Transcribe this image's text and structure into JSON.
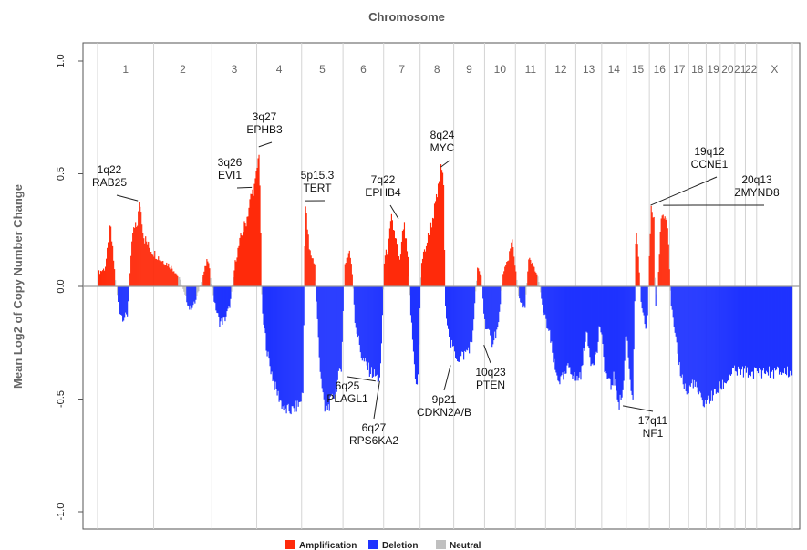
{
  "chart_data": {
    "type": "bar",
    "title": "Chromosome",
    "ylabel": "Mean Log2 of Copy Number Change",
    "ylim": [
      -1.05,
      1.0
    ],
    "yticks": [
      "1.0",
      "0.5",
      "0.0",
      "-0.5",
      "-1.0"
    ],
    "ytick_values": [
      1.0,
      0.5,
      0.0,
      -0.5,
      -1.0
    ],
    "colors": {
      "amplification": "#ff2a0a",
      "deletion": "#1f33ff",
      "neutral": "#c0c0c0",
      "zero_line": "#9a9a9a",
      "grid": "#d4d4d4"
    },
    "chromosomes": [
      {
        "label": "1",
        "length": 0.08
      },
      {
        "label": "2",
        "length": 0.083
      },
      {
        "label": "3",
        "length": 0.064
      },
      {
        "label": "4",
        "length": 0.064
      },
      {
        "label": "5",
        "length": 0.059
      },
      {
        "label": "6",
        "length": 0.058
      },
      {
        "label": "7",
        "length": 0.052
      },
      {
        "label": "8",
        "length": 0.048
      },
      {
        "label": "9",
        "length": 0.044
      },
      {
        "label": "10",
        "length": 0.044
      },
      {
        "label": "11",
        "length": 0.043
      },
      {
        "label": "12",
        "length": 0.043
      },
      {
        "label": "13",
        "length": 0.037
      },
      {
        "label": "14",
        "length": 0.035
      },
      {
        "label": "15",
        "length": 0.033
      },
      {
        "label": "16",
        "length": 0.029
      },
      {
        "label": "17",
        "length": 0.027
      },
      {
        "label": "18",
        "length": 0.025
      },
      {
        "label": "19",
        "length": 0.02
      },
      {
        "label": "20",
        "length": 0.021
      },
      {
        "label": "21",
        "length": 0.015
      },
      {
        "label": "22",
        "length": 0.016
      },
      {
        "label": "X",
        "length": 0.051
      }
    ],
    "profile_points": [
      [
        0.0,
        0.06
      ],
      [
        0.01,
        0.08
      ],
      [
        0.018,
        0.26
      ],
      [
        0.025,
        0.03
      ],
      [
        0.03,
        -0.1
      ],
      [
        0.036,
        -0.14
      ],
      [
        0.042,
        -0.13
      ],
      [
        0.05,
        0.24
      ],
      [
        0.056,
        0.27
      ],
      [
        0.06,
        0.38
      ],
      [
        0.066,
        0.22
      ],
      [
        0.074,
        0.17
      ],
      [
        0.08,
        0.15
      ],
      [
        0.09,
        0.12
      ],
      [
        0.1,
        0.1
      ],
      [
        0.11,
        0.07
      ],
      [
        0.118,
        0.03
      ],
      [
        0.125,
        -0.04
      ],
      [
        0.132,
        -0.1
      ],
      [
        0.14,
        -0.07
      ],
      [
        0.15,
        0.04
      ],
      [
        0.158,
        0.12
      ],
      [
        0.163,
        0.02
      ],
      [
        0.168,
        -0.08
      ],
      [
        0.175,
        -0.16
      ],
      [
        0.182,
        -0.15
      ],
      [
        0.19,
        -0.08
      ],
      [
        0.198,
        0.12
      ],
      [
        0.206,
        0.22
      ],
      [
        0.214,
        0.3
      ],
      [
        0.22,
        0.4
      ],
      [
        0.226,
        0.45
      ],
      [
        0.231,
        0.58
      ],
      [
        0.232,
        0.62
      ],
      [
        0.236,
        -0.12
      ],
      [
        0.245,
        -0.32
      ],
      [
        0.255,
        -0.45
      ],
      [
        0.268,
        -0.55
      ],
      [
        0.28,
        -0.55
      ],
      [
        0.29,
        -0.52
      ],
      [
        0.295,
        -0.47
      ],
      [
        0.298,
        0.38
      ],
      [
        0.304,
        0.16
      ],
      [
        0.312,
        0.1
      ],
      [
        0.318,
        -0.3
      ],
      [
        0.326,
        -0.56
      ],
      [
        0.334,
        -0.52
      ],
      [
        0.342,
        -0.46
      ],
      [
        0.35,
        -0.35
      ],
      [
        0.355,
        0.1
      ],
      [
        0.362,
        0.16
      ],
      [
        0.366,
        0.05
      ],
      [
        0.37,
        -0.16
      ],
      [
        0.38,
        -0.32
      ],
      [
        0.39,
        -0.37
      ],
      [
        0.4,
        -0.4
      ],
      [
        0.406,
        -0.42
      ],
      [
        0.412,
        0.12
      ],
      [
        0.418,
        0.18
      ],
      [
        0.422,
        0.3
      ],
      [
        0.428,
        0.22
      ],
      [
        0.434,
        0.1
      ],
      [
        0.44,
        0.28
      ],
      [
        0.446,
        0.12
      ],
      [
        0.45,
        -0.12
      ],
      [
        0.456,
        -0.38
      ],
      [
        0.46,
        -0.46
      ],
      [
        0.465,
        0.1
      ],
      [
        0.472,
        0.18
      ],
      [
        0.48,
        0.28
      ],
      [
        0.488,
        0.4
      ],
      [
        0.494,
        0.53
      ],
      [
        0.497,
        0.5
      ],
      [
        0.5,
        -0.1
      ],
      [
        0.508,
        -0.26
      ],
      [
        0.518,
        -0.32
      ],
      [
        0.528,
        -0.3
      ],
      [
        0.538,
        -0.25
      ],
      [
        0.546,
        0.08
      ],
      [
        0.552,
        0.04
      ],
      [
        0.556,
        -0.15
      ],
      [
        0.566,
        -0.25
      ],
      [
        0.576,
        -0.18
      ],
      [
        0.582,
        0.04
      ],
      [
        0.59,
        0.12
      ],
      [
        0.596,
        0.2
      ],
      [
        0.6,
        0.1
      ],
      [
        0.606,
        -0.06
      ],
      [
        0.614,
        -0.1
      ],
      [
        0.62,
        0.12
      ],
      [
        0.628,
        0.08
      ],
      [
        0.634,
        0.03
      ],
      [
        0.64,
        -0.1
      ],
      [
        0.65,
        -0.22
      ],
      [
        0.658,
        -0.38
      ],
      [
        0.665,
        -0.42
      ],
      [
        0.672,
        -0.4
      ],
      [
        0.678,
        -0.35
      ],
      [
        0.688,
        -0.42
      ],
      [
        0.696,
        -0.38
      ],
      [
        0.702,
        -0.2
      ],
      [
        0.71,
        -0.34
      ],
      [
        0.718,
        -0.3
      ],
      [
        0.722,
        -0.16
      ],
      [
        0.73,
        -0.38
      ],
      [
        0.738,
        -0.45
      ],
      [
        0.742,
        -0.4
      ],
      [
        0.75,
        -0.52
      ],
      [
        0.756,
        -0.46
      ],
      [
        0.76,
        -0.18
      ],
      [
        0.766,
        -0.42
      ],
      [
        0.77,
        -0.5
      ],
      [
        0.774,
        0.24
      ],
      [
        0.778,
        0.12
      ],
      [
        0.782,
        -0.1
      ],
      [
        0.79,
        -0.2
      ],
      [
        0.796,
        0.36
      ],
      [
        0.8,
        0.3
      ],
      [
        0.802,
        -0.1
      ],
      [
        0.806,
        0.02
      ],
      [
        0.81,
        0.3
      ],
      [
        0.816,
        0.34
      ],
      [
        0.82,
        0.28
      ],
      [
        0.824,
        -0.05
      ],
      [
        0.83,
        -0.22
      ],
      [
        0.836,
        -0.34
      ],
      [
        0.84,
        -0.4
      ],
      [
        0.848,
        -0.48
      ],
      [
        0.856,
        -0.42
      ],
      [
        0.862,
        -0.46
      ],
      [
        0.87,
        -0.52
      ],
      [
        0.88,
        -0.5
      ],
      [
        0.892,
        -0.46
      ],
      [
        0.904,
        -0.42
      ],
      [
        0.912,
        -0.38
      ]
    ],
    "annotations": [
      {
        "lines": [
          "1q22",
          "RAB25"
        ],
        "x": 0.058,
        "y": 0.38
      },
      {
        "lines": [
          "3q26",
          "EVI1"
        ],
        "x": 0.222,
        "y": 0.44
      },
      {
        "lines": [
          "3q27",
          "EPHB3"
        ],
        "x": 0.232,
        "y": 0.62
      },
      {
        "lines": [
          "5p15.3",
          "TERT"
        ],
        "x": 0.298,
        "y": 0.38
      },
      {
        "lines": [
          "7q22",
          "EPHB4"
        ],
        "x": 0.433,
        "y": 0.3
      },
      {
        "lines": [
          "8q24",
          "MYC"
        ],
        "x": 0.494,
        "y": 0.53
      },
      {
        "lines": [
          "19q12",
          "CCNE1"
        ],
        "x": 0.796,
        "y": 0.36
      },
      {
        "lines": [
          "20q13",
          "ZMYND8"
        ],
        "x": 0.814,
        "y": 0.36
      },
      {
        "lines": [
          "6q25",
          "PLAGL1"
        ],
        "x": 0.4,
        "y": -0.42
      },
      {
        "lines": [
          "6q27",
          "RPS6KA2"
        ],
        "x": 0.406,
        "y": -0.42
      },
      {
        "lines": [
          "9p21",
          "CDKN2A/B"
        ],
        "x": 0.508,
        "y": -0.35
      },
      {
        "lines": [
          "10q23",
          "PTEN"
        ],
        "x": 0.556,
        "y": -0.26
      },
      {
        "lines": [
          "17q11",
          "NF1"
        ],
        "x": 0.756,
        "y": -0.53
      }
    ],
    "legend": {
      "position": "bottom",
      "items": [
        {
          "label": "Amplification",
          "color": "#ff2a0a"
        },
        {
          "label": "Deletion",
          "color": "#1f33ff"
        },
        {
          "label": "Neutral",
          "color": "#c0c0c0"
        }
      ]
    },
    "grid": true
  }
}
